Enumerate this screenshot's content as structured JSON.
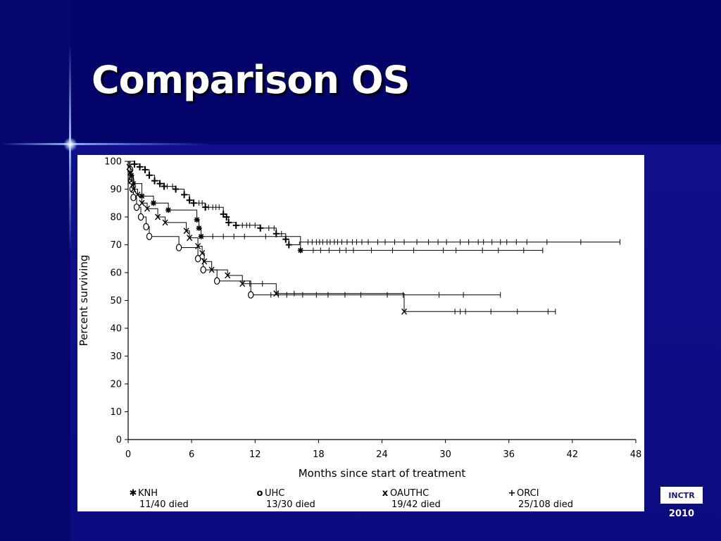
{
  "slide": {
    "title": "Comparison OS",
    "logo_text": "INCTR",
    "logo_year": "2010"
  },
  "chart_data": {
    "type": "line",
    "title": "",
    "xlabel": "Months since start of treatment",
    "ylabel": "Percent surviving",
    "xlim": [
      0,
      48
    ],
    "ylim": [
      0,
      100
    ],
    "xticks": [
      0,
      6,
      12,
      18,
      24,
      30,
      36,
      42,
      48
    ],
    "yticks": [
      0,
      10,
      20,
      30,
      40,
      50,
      60,
      70,
      80,
      90,
      100
    ],
    "grid": false,
    "legend_placement": "bottom",
    "series": [
      {
        "name": "KNH",
        "symbol": "✱",
        "died": "11/40 died",
        "steps": [
          [
            0,
            100
          ],
          [
            0.2,
            97
          ],
          [
            0.3,
            95
          ],
          [
            0.5,
            92
          ],
          [
            1.3,
            87.5
          ],
          [
            2.4,
            85
          ],
          [
            3.8,
            82.5
          ],
          [
            6.5,
            79
          ],
          [
            6.7,
            76
          ],
          [
            6.9,
            73
          ],
          [
            16.3,
            68
          ]
        ],
        "censor": [
          8,
          9,
          10,
          11,
          13,
          17.5,
          18.2,
          19,
          20,
          20.6,
          21.3,
          23,
          25,
          27,
          29.8,
          31,
          33.5,
          35,
          37.4,
          39.2
        ],
        "end_x": 39.2
      },
      {
        "name": "UHC",
        "symbol": "o",
        "died": "13/30 died",
        "steps": [
          [
            0,
            100
          ],
          [
            0.2,
            97
          ],
          [
            0.3,
            93
          ],
          [
            0.4,
            90
          ],
          [
            0.5,
            87
          ],
          [
            0.8,
            83.5
          ],
          [
            1.2,
            80
          ],
          [
            1.7,
            76.5
          ],
          [
            2,
            73
          ],
          [
            4.8,
            69
          ],
          [
            6.6,
            65
          ],
          [
            7.1,
            61
          ],
          [
            8.4,
            57
          ],
          [
            11.6,
            52
          ]
        ],
        "censor": [
          13.5,
          14.2,
          15,
          16.5,
          17.8,
          18.9,
          20.5,
          22,
          24.5,
          26,
          29.4,
          31.7,
          35.2
        ],
        "end_x": 35.2
      },
      {
        "name": "OAUTHC",
        "symbol": "x",
        "died": "19/42 died",
        "steps": [
          [
            0,
            100
          ],
          [
            0.1,
            98
          ],
          [
            0.2,
            96
          ],
          [
            0.3,
            93
          ],
          [
            0.5,
            90
          ],
          [
            0.9,
            88
          ],
          [
            1.3,
            85
          ],
          [
            1.8,
            83
          ],
          [
            2.8,
            80
          ],
          [
            3.5,
            78
          ],
          [
            5.5,
            75
          ],
          [
            5.8,
            72.5
          ],
          [
            6.6,
            69.5
          ],
          [
            7,
            67
          ],
          [
            7.2,
            64
          ],
          [
            7.9,
            61
          ],
          [
            9.4,
            59
          ],
          [
            10.8,
            56
          ],
          [
            14,
            52.5
          ],
          [
            26.1,
            46
          ]
        ],
        "censor": [
          11.5,
          12.7,
          15.7,
          30.9,
          31.4,
          31.9,
          34.3,
          36.8,
          39.7,
          40.4
        ],
        "end_x": 40.4
      },
      {
        "name": "ORCI",
        "symbol": "+",
        "died": "25/108 died",
        "steps": [
          [
            0,
            100
          ],
          [
            0.6,
            99
          ],
          [
            1.1,
            98
          ],
          [
            1.6,
            97
          ],
          [
            2,
            95
          ],
          [
            2.5,
            93
          ],
          [
            3,
            92
          ],
          [
            3.4,
            91
          ],
          [
            4.5,
            90
          ],
          [
            5.3,
            88
          ],
          [
            5.8,
            86
          ],
          [
            6.2,
            85
          ],
          [
            7.3,
            83.5
          ],
          [
            9,
            81
          ],
          [
            9.3,
            80
          ],
          [
            9.5,
            78
          ],
          [
            10.2,
            77
          ],
          [
            12.5,
            76
          ],
          [
            14,
            74
          ],
          [
            14.9,
            72
          ],
          [
            15.2,
            70
          ],
          [
            16.2,
            71
          ]
        ],
        "censor": [
          3.7,
          4.2,
          6.7,
          7,
          7.6,
          8,
          8.3,
          8.6,
          10.8,
          11.2,
          11.5,
          12,
          13.3,
          13.8,
          14.5,
          17,
          17.4,
          17.8,
          18.1,
          18.4,
          18.8,
          19.1,
          19.5,
          19.8,
          20.2,
          20.7,
          21.2,
          21.6,
          22.1,
          22.7,
          23.6,
          24.3,
          25.2,
          26.1,
          27.3,
          28.4,
          29.3,
          30.1,
          31.4,
          32.2,
          33.1,
          33.6,
          34.4,
          35.2,
          35.8,
          36.7,
          37.7,
          39.6,
          42.8,
          46.5
        ],
        "end_x": 46.5
      }
    ]
  }
}
